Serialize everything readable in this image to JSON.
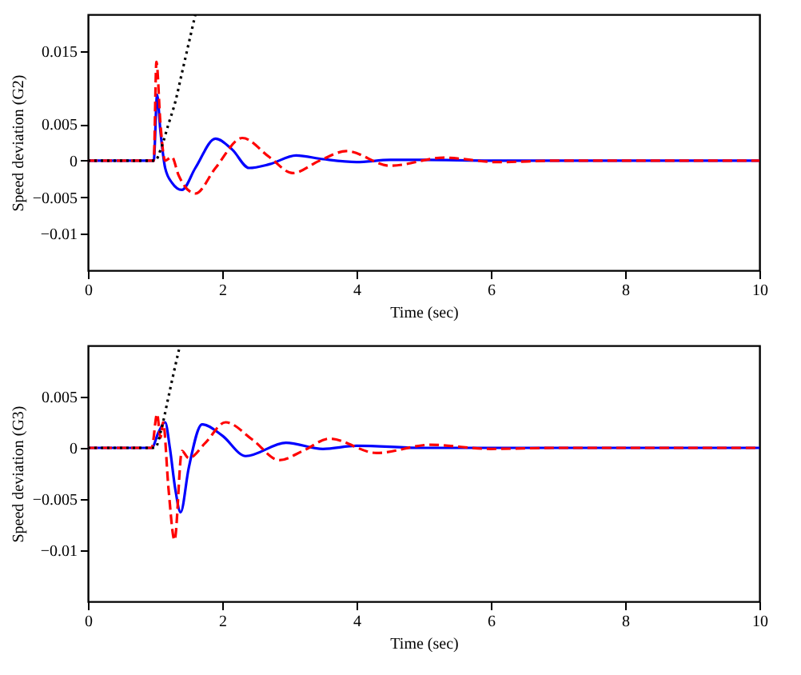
{
  "chart_data": [
    {
      "type": "line",
      "xlabel": "Time (sec)",
      "ylabel": "Speed deviation (G2)",
      "xlim": [
        0,
        10
      ],
      "ylim": [
        -0.015,
        0.02
      ],
      "xticks": [
        0,
        2,
        4,
        6,
        8,
        10
      ],
      "yticks": [
        -0.01,
        -0.005,
        0,
        0.005,
        0.015
      ],
      "grid": false,
      "marker": "none",
      "series": [
        {
          "color": "#0000ff",
          "line_style": "solid",
          "x": [
            0,
            0.98,
            1.03,
            1.08,
            1.15,
            1.25,
            1.4,
            1.6,
            1.9,
            2.15,
            2.4,
            2.7,
            3.1,
            3.5,
            4.0,
            4.5,
            5.0,
            6.0,
            8.0,
            10
          ],
          "values": [
            0,
            0,
            0.009,
            0.004,
            -0.001,
            -0.003,
            -0.004,
            -0.001,
            0.003,
            0.0015,
            -0.001,
            -0.0005,
            0.0007,
            0.0002,
            -0.0002,
            0.0001,
            0.0001,
            0,
            0,
            0
          ]
        },
        {
          "color": "#ff0000",
          "line_style": "dashed",
          "x": [
            0,
            0.98,
            1.02,
            1.08,
            1.15,
            1.25,
            1.35,
            1.6,
            1.9,
            2.3,
            2.7,
            3.05,
            3.45,
            3.85,
            4.5,
            5.3,
            6.1,
            7.0,
            8.0,
            10
          ],
          "values": [
            0,
            0,
            0.0135,
            0.005,
            0,
            0.0005,
            -0.002,
            -0.0045,
            -0.001,
            0.0031,
            0.0005,
            -0.0017,
            0,
            0.0013,
            -0.0007,
            0.0004,
            -0.0002,
            0,
            0,
            0
          ]
        },
        {
          "color": "#000000",
          "line_style": "dotted",
          "x": [
            0,
            1.0,
            1.1,
            1.2,
            1.3,
            1.4,
            1.5,
            1.6
          ],
          "values": [
            0,
            0,
            0.002,
            0.005,
            0.008,
            0.012,
            0.016,
            0.02
          ]
        }
      ]
    },
    {
      "type": "line",
      "xlabel": "Time (sec)",
      "ylabel": "Speed deviation (G3)",
      "xlim": [
        0,
        10
      ],
      "ylim": [
        -0.015,
        0.01
      ],
      "xticks": [
        0,
        2,
        4,
        6,
        8,
        10
      ],
      "yticks": [
        -0.01,
        -0.005,
        0,
        0.005
      ],
      "grid": false,
      "marker": "none",
      "series": [
        {
          "color": "#0000ff",
          "line_style": "solid",
          "x": [
            0,
            0.95,
            1.05,
            1.15,
            1.22,
            1.3,
            1.38,
            1.5,
            1.7,
            2.0,
            2.35,
            2.95,
            3.5,
            4.0,
            5.0,
            6.0,
            8.0,
            10
          ],
          "values": [
            0,
            0,
            0.0015,
            0.0025,
            0,
            -0.004,
            -0.0063,
            -0.002,
            0.0023,
            0.0012,
            -0.0008,
            0.0005,
            -0.0001,
            0.0002,
            0,
            0,
            0,
            0
          ]
        },
        {
          "color": "#ff0000",
          "line_style": "dashed",
          "x": [
            0,
            0.95,
            1.03,
            1.08,
            1.12,
            1.2,
            1.29,
            1.4,
            1.5,
            1.75,
            2.05,
            2.45,
            2.85,
            3.2,
            3.6,
            4.3,
            5.1,
            6.0,
            7.0,
            10
          ],
          "values": [
            0,
            0,
            0.0033,
            0.001,
            0.0025,
            -0.004,
            -0.009,
            -0.0003,
            -0.001,
            0.0005,
            0.0025,
            0.0008,
            -0.0012,
            -0.0003,
            0.0009,
            -0.0005,
            0.0003,
            -0.0001,
            0,
            0
          ]
        },
        {
          "color": "#000000",
          "line_style": "dotted",
          "x": [
            0,
            1.0,
            1.1,
            1.2,
            1.3,
            1.37
          ],
          "values": [
            0,
            0,
            0.002,
            0.005,
            0.008,
            0.01
          ]
        }
      ]
    }
  ]
}
